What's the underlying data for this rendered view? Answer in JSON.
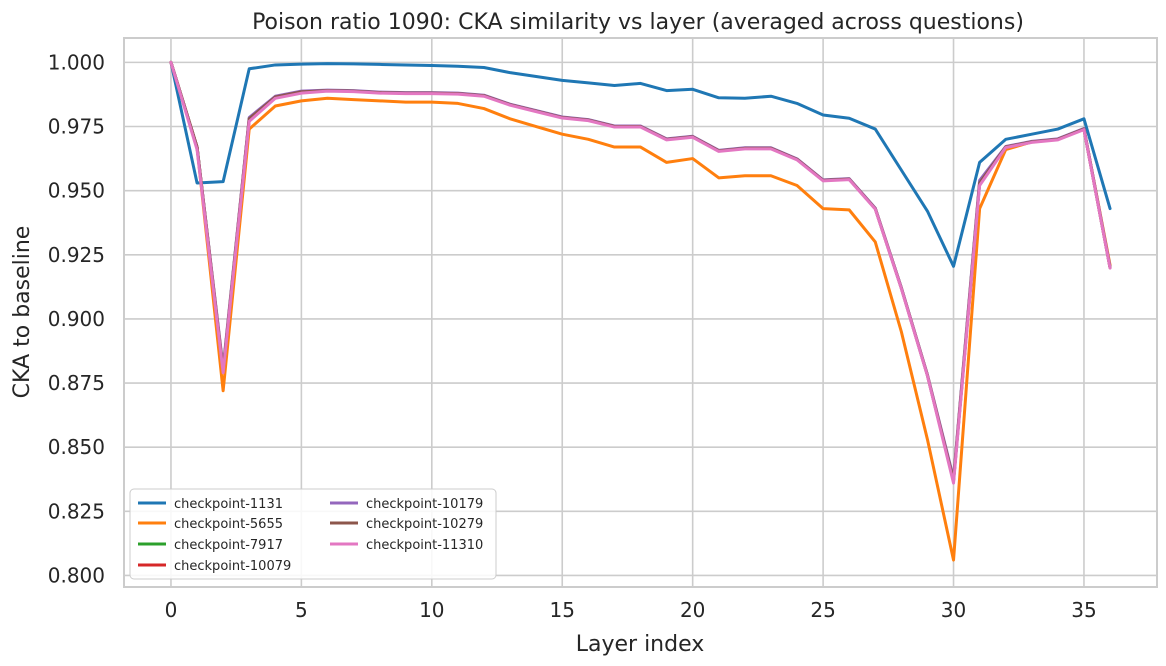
{
  "chart_data": {
    "type": "line",
    "title": "Poison ratio 1090: CKA similarity vs layer (averaged across questions)",
    "xlabel": "Layer index",
    "ylabel": "CKA to baseline",
    "xlim": [
      -1.8,
      37.8
    ],
    "ylim": [
      0.7955,
      1.0095
    ],
    "xticks": [
      0,
      5,
      10,
      15,
      20,
      25,
      30,
      35
    ],
    "xtick_labels": [
      "0",
      "5",
      "10",
      "15",
      "20",
      "25",
      "30",
      "35"
    ],
    "yticks": [
      0.8,
      0.825,
      0.85,
      0.875,
      0.9,
      0.925,
      0.95,
      0.975,
      1.0
    ],
    "ytick_labels": [
      "0.800",
      "0.825",
      "0.850",
      "0.875",
      "0.900",
      "0.925",
      "0.950",
      "0.975",
      "1.000"
    ],
    "grid": true,
    "legend_position": "lower-left",
    "legend_columns": 2,
    "x": [
      0,
      1,
      2,
      3,
      4,
      5,
      6,
      7,
      8,
      9,
      10,
      11,
      12,
      13,
      14,
      15,
      16,
      17,
      18,
      19,
      20,
      21,
      22,
      23,
      24,
      25,
      26,
      27,
      28,
      29,
      30,
      31,
      32,
      33,
      34,
      35,
      36
    ],
    "series": [
      {
        "name": "checkpoint-1131",
        "color": "#1f77b4",
        "values": [
          1.0,
          0.953,
          0.9535,
          0.9975,
          0.999,
          0.9993,
          0.9995,
          0.9994,
          0.9992,
          0.999,
          0.9988,
          0.9985,
          0.998,
          0.996,
          0.9945,
          0.993,
          0.992,
          0.991,
          0.9918,
          0.989,
          0.9895,
          0.9862,
          0.986,
          0.9868,
          0.984,
          0.9795,
          0.9782,
          0.974,
          0.958,
          0.942,
          0.9205,
          0.961,
          0.97,
          0.972,
          0.974,
          0.978,
          0.943
        ]
      },
      {
        "name": "checkpoint-5655",
        "color": "#ff7f0e",
        "values": [
          1.0,
          0.967,
          0.872,
          0.974,
          0.983,
          0.985,
          0.986,
          0.9855,
          0.985,
          0.9845,
          0.9845,
          0.984,
          0.982,
          0.978,
          0.975,
          0.972,
          0.97,
          0.967,
          0.967,
          0.961,
          0.9625,
          0.955,
          0.9558,
          0.9558,
          0.952,
          0.943,
          0.9425,
          0.93,
          0.895,
          0.853,
          0.806,
          0.943,
          0.966,
          0.969,
          0.97,
          0.974,
          0.921
        ]
      },
      {
        "name": "checkpoint-7917",
        "color": "#2ca02c",
        "values": [
          1.0,
          0.967,
          0.88,
          0.978,
          0.9865,
          0.9885,
          0.989,
          0.9888,
          0.9882,
          0.988,
          0.988,
          0.9878,
          0.987,
          0.9835,
          0.981,
          0.9785,
          0.9775,
          0.975,
          0.975,
          0.97,
          0.971,
          0.9655,
          0.9665,
          0.9665,
          0.9622,
          0.954,
          0.9545,
          0.943,
          0.912,
          0.878,
          0.837,
          0.953,
          0.967,
          0.969,
          0.97,
          0.974,
          0.92
        ]
      },
      {
        "name": "checkpoint-10079",
        "color": "#d62728",
        "values": [
          1.0,
          0.967,
          0.88,
          0.978,
          0.9865,
          0.9885,
          0.989,
          0.9888,
          0.9882,
          0.988,
          0.988,
          0.9878,
          0.987,
          0.9835,
          0.981,
          0.9785,
          0.9775,
          0.975,
          0.975,
          0.97,
          0.971,
          0.9655,
          0.9665,
          0.9665,
          0.9622,
          0.954,
          0.9545,
          0.943,
          0.912,
          0.878,
          0.837,
          0.953,
          0.967,
          0.969,
          0.97,
          0.974,
          0.92
        ]
      },
      {
        "name": "checkpoint-10179",
        "color": "#9467bd",
        "values": [
          1.0,
          0.967,
          0.881,
          0.9785,
          0.9868,
          0.9888,
          0.9892,
          0.989,
          0.9884,
          0.9882,
          0.9882,
          0.988,
          0.9872,
          0.9837,
          0.9812,
          0.9787,
          0.9777,
          0.9752,
          0.9752,
          0.9702,
          0.9712,
          0.9657,
          0.9667,
          0.9667,
          0.9624,
          0.9542,
          0.9547,
          0.9432,
          0.9122,
          0.8782,
          0.838,
          0.954,
          0.9672,
          0.9692,
          0.9702,
          0.9742,
          0.9202
        ]
      },
      {
        "name": "checkpoint-10279",
        "color": "#8c564b",
        "values": [
          1.0,
          0.967,
          0.88,
          0.978,
          0.9865,
          0.9885,
          0.989,
          0.9888,
          0.9882,
          0.988,
          0.988,
          0.9878,
          0.987,
          0.9835,
          0.981,
          0.9785,
          0.9775,
          0.975,
          0.975,
          0.97,
          0.971,
          0.9655,
          0.9665,
          0.9665,
          0.9622,
          0.954,
          0.9545,
          0.943,
          0.912,
          0.878,
          0.837,
          0.953,
          0.967,
          0.969,
          0.97,
          0.974,
          0.92
        ]
      },
      {
        "name": "checkpoint-11310",
        "color": "#e377c2",
        "values": [
          1.0,
          0.966,
          0.879,
          0.977,
          0.986,
          0.988,
          0.9888,
          0.9886,
          0.988,
          0.9878,
          0.9878,
          0.9876,
          0.9868,
          0.9833,
          0.9808,
          0.9783,
          0.9773,
          0.9748,
          0.9748,
          0.9698,
          0.9708,
          0.9653,
          0.9663,
          0.9663,
          0.962,
          0.9538,
          0.9543,
          0.9428,
          0.9118,
          0.8778,
          0.836,
          0.952,
          0.9668,
          0.9688,
          0.9698,
          0.9738,
          0.9198
        ]
      }
    ]
  }
}
